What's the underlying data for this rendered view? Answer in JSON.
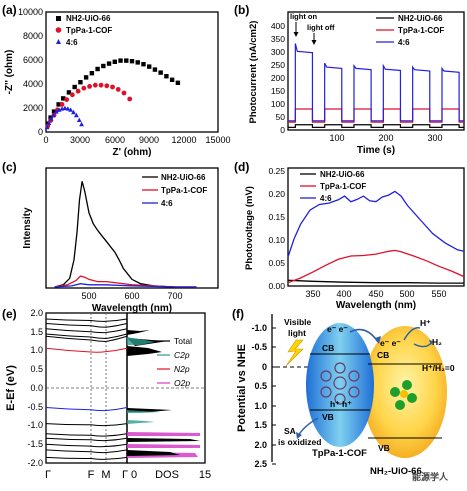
{
  "panels": {
    "a": {
      "label": "(a)",
      "xlabel": "Z' (ohm)",
      "ylabel": "-Z'' (ohm)",
      "xticks": [
        "0",
        "3000",
        "6000",
        "9000",
        "12000",
        "15000"
      ],
      "yticks": [
        "0",
        "2000",
        "4000",
        "6000",
        "8000",
        "10000"
      ],
      "legend": [
        "NH2-UiO-66",
        "TpPa-1-COF",
        "4:6"
      ]
    },
    "b": {
      "label": "(b)",
      "xlabel": "Time (s)",
      "ylabel": "Photocurrent (nA/cm2)",
      "xticks": [
        "100",
        "200",
        "300"
      ],
      "yticks": [
        "0",
        "50",
        "100",
        "150",
        "200",
        "250",
        "300",
        "350",
        "400"
      ],
      "legend": [
        "NH2-UiO-66",
        "TpPa-1-COF",
        "4:6"
      ],
      "annotations": [
        "light on",
        "light off"
      ]
    },
    "c": {
      "label": "(c)",
      "xlabel": "Wavelength (nm)",
      "ylabel": "Intensity",
      "xticks": [
        "500",
        "600",
        "700"
      ],
      "legend": [
        "NH2-UiO-66",
        "TpPa-1-COF",
        "4:6"
      ]
    },
    "d": {
      "label": "(d)",
      "xlabel": "Wavelength (nm)",
      "ylabel": "Photovoltage (mV)",
      "xticks": [
        "350",
        "400",
        "450",
        "500",
        "550"
      ],
      "yticks": [
        "0.00",
        "0.05",
        "0.10",
        "0.15",
        "0.20",
        "0.25"
      ],
      "legend": [
        "NH2-UiO-66",
        "TpPa-1-COF",
        "4:6"
      ]
    },
    "e": {
      "label": "(e)",
      "ylabel": "E-Ef (eV)",
      "yticks": [
        "2.0",
        "1.5",
        "1.0",
        "0.5",
        "0.0",
        "-0.5",
        "-1.0",
        "-1.5",
        "-2.0"
      ],
      "kpoints": [
        "Γ",
        "F",
        "M",
        "Γ"
      ],
      "dos_xticks": [
        "0",
        "15"
      ],
      "dos_label": "DOS",
      "legend": [
        "Total",
        "C2p",
        "N2p",
        "O2p"
      ]
    },
    "f": {
      "label": "(f)",
      "ylabel": "Potential vs NHE",
      "yticks": [
        "-1.0",
        "-0.5",
        "0",
        "0.5",
        "1.0",
        "1.5",
        "2.0",
        "2.5"
      ],
      "labels": {
        "visible_light": [
          "Visible",
          "light"
        ],
        "cb1": "CB",
        "vb1": "VB",
        "cb2": "CB",
        "vb2": "VB",
        "e1": "e⁻ e⁻",
        "e2": "e⁻ e⁻",
        "holes": "h⁺ h⁺",
        "h_plus": "H⁺",
        "h2": "H₂",
        "h_couple": "H⁺/H₂=0",
        "sa": [
          "SA",
          "is oxidized"
        ],
        "cof": "TpPa-1-COF",
        "uio": "NH₂-UiO-66",
        "watermark": "能源学人"
      }
    }
  },
  "chart_data": [
    {
      "panel": "a",
      "type": "scatter",
      "xlabel": "Z' (ohm)",
      "ylabel": "-Z'' (ohm)",
      "xlim": [
        0,
        15000
      ],
      "ylim": [
        0,
        10000
      ],
      "series": [
        {
          "name": "NH2-UiO-66",
          "color": "#000000",
          "marker": "square",
          "x": [
            150,
            400,
            700,
            1100,
            1500,
            2000,
            2500,
            3000,
            3500,
            4000,
            4500,
            5000,
            5500,
            6000,
            6500,
            7000,
            7500,
            8000,
            8500,
            9000,
            9500,
            10000,
            10500,
            11000,
            11500
          ],
          "y": [
            700,
            1200,
            1700,
            2300,
            2800,
            3300,
            3750,
            4150,
            4550,
            4900,
            5250,
            5500,
            5700,
            5850,
            5950,
            5950,
            5900,
            5800,
            5650,
            5450,
            5200,
            4950,
            4650,
            4350,
            4100
          ]
        },
        {
          "name": "TpPa-1-COF",
          "color": "#e0102a",
          "marker": "circle",
          "x": [
            150,
            400,
            700,
            1000,
            1400,
            1800,
            2300,
            2800,
            3300,
            3800,
            4300,
            4800,
            5300,
            5800,
            6300,
            6800,
            7300
          ],
          "y": [
            500,
            950,
            1400,
            1850,
            2300,
            2700,
            3100,
            3400,
            3650,
            3800,
            3900,
            3900,
            3850,
            3750,
            3550,
            3250,
            2750
          ]
        },
        {
          "name": "4:6",
          "color": "#2020e0",
          "marker": "triangle",
          "x": [
            100,
            250,
            450,
            650,
            900,
            1150,
            1400,
            1650,
            1900,
            2150,
            2400,
            2650,
            2900,
            3100
          ],
          "y": [
            400,
            750,
            1100,
            1400,
            1700,
            1850,
            1950,
            2000,
            1950,
            1850,
            1650,
            1400,
            1000,
            650
          ]
        }
      ]
    },
    {
      "panel": "b",
      "type": "line",
      "xlabel": "Time (s)",
      "ylabel": "Photocurrent (nA/cm2)",
      "xlim": [
        0,
        360
      ],
      "ylim": [
        0,
        450
      ],
      "on_times": [
        [
          15,
          50
        ],
        [
          75,
          110
        ],
        [
          135,
          170
        ],
        [
          195,
          230
        ],
        [
          255,
          290
        ],
        [
          315,
          350
        ]
      ],
      "series": [
        {
          "name": "NH2-UiO-66",
          "color": "#000000",
          "dark": 10,
          "on": 20
        },
        {
          "name": "TpPa-1-COF",
          "color": "#e0102a",
          "dark": 30,
          "on": 80
        },
        {
          "name": "4:6",
          "color": "#2020e0",
          "dark": 35,
          "on_peaks": [
            330,
            255,
            245,
            245,
            240,
            235
          ],
          "on_plateau": [
            300,
            240,
            235,
            232,
            230,
            225
          ]
        }
      ]
    },
    {
      "panel": "c",
      "type": "line",
      "xlabel": "Wavelength (nm)",
      "ylabel": "Intensity",
      "xlim": [
        400,
        800
      ],
      "ylim": [
        0,
        1
      ],
      "series": [
        {
          "name": "NH2-UiO-66",
          "color": "#000000",
          "x": [
            420,
            440,
            455,
            465,
            472,
            478,
            484,
            490,
            500,
            510,
            520,
            530,
            540,
            550,
            560,
            570,
            580,
            600,
            620,
            650,
            700,
            750
          ],
          "y": [
            0.0,
            0.02,
            0.08,
            0.25,
            0.5,
            0.8,
            0.97,
            0.88,
            0.68,
            0.58,
            0.52,
            0.47,
            0.42,
            0.37,
            0.32,
            0.25,
            0.17,
            0.07,
            0.03,
            0.01,
            0.0,
            0.0
          ]
        },
        {
          "name": "TpPa-1-COF",
          "color": "#e0102a",
          "x": [
            420,
            450,
            470,
            480,
            490,
            500,
            520,
            540,
            560,
            600,
            650,
            700,
            750
          ],
          "y": [
            0.0,
            0.02,
            0.06,
            0.1,
            0.09,
            0.07,
            0.05,
            0.05,
            0.04,
            0.02,
            0.01,
            0.0,
            0.0
          ]
        },
        {
          "name": "4:6",
          "color": "#2020e0",
          "x": [
            420,
            460,
            480,
            500,
            540,
            600,
            700,
            750
          ],
          "y": [
            0.0,
            0.01,
            0.03,
            0.02,
            0.02,
            0.01,
            0.0,
            0.0
          ]
        }
      ]
    },
    {
      "panel": "d",
      "type": "line",
      "xlabel": "Wavelength (nm)",
      "ylabel": "Photovoltage (mV)",
      "xlim": [
        310,
        590
      ],
      "ylim": [
        0,
        0.25
      ],
      "series": [
        {
          "name": "NH2-UiO-66",
          "color": "#000000",
          "x": [
            310,
            350,
            400,
            450,
            500,
            550,
            590
          ],
          "y": [
            0.01,
            0.008,
            0.006,
            0.005,
            0.005,
            0.004,
            0.004
          ]
        },
        {
          "name": "TpPa-1-COF",
          "color": "#e0102a",
          "x": [
            310,
            330,
            350,
            370,
            390,
            410,
            430,
            450,
            470,
            480,
            490,
            510,
            530,
            550,
            570,
            590
          ],
          "y": [
            0.005,
            0.015,
            0.028,
            0.042,
            0.055,
            0.062,
            0.063,
            0.066,
            0.072,
            0.074,
            0.071,
            0.062,
            0.052,
            0.04,
            0.03,
            0.018
          ]
        },
        {
          "name": "4:6",
          "color": "#2020e0",
          "x": [
            310,
            320,
            330,
            345,
            360,
            375,
            390,
            400,
            410,
            420,
            430,
            440,
            450,
            460,
            470,
            480,
            490,
            500,
            520,
            540,
            560,
            580,
            590
          ],
          "y": [
            0.06,
            0.1,
            0.13,
            0.16,
            0.172,
            0.175,
            0.182,
            0.19,
            0.178,
            0.183,
            0.19,
            0.18,
            0.178,
            0.188,
            0.192,
            0.2,
            0.19,
            0.17,
            0.14,
            0.11,
            0.09,
            0.075,
            0.072
          ]
        }
      ]
    },
    {
      "panel": "e",
      "type": "line",
      "ylabel": "E-Ef (eV)",
      "ylim": [
        -2.0,
        2.0
      ],
      "bands": [
        {
          "color": "#000000",
          "y": [
            1.84,
            1.8,
            1.78,
            1.84
          ]
        },
        {
          "color": "#000000",
          "y": [
            1.72,
            1.66,
            1.62,
            1.72
          ]
        },
        {
          "color": "#000000",
          "y": [
            1.58,
            1.5,
            1.48,
            1.58
          ]
        },
        {
          "color": "#000000",
          "y": [
            1.44,
            1.36,
            1.32,
            1.44
          ]
        },
        {
          "color": "#000000",
          "y": [
            1.38,
            1.28,
            1.24,
            1.38
          ]
        },
        {
          "color": "#e0102a",
          "y": [
            1.06,
            0.96,
            0.97,
            1.06
          ]
        },
        {
          "color": "#2020e0",
          "y": [
            -0.52,
            -0.58,
            -0.6,
            -0.52
          ]
        },
        {
          "color": "#000000",
          "y": [
            -0.95,
            -0.98,
            -1.0,
            -0.95
          ]
        },
        {
          "color": "#000000",
          "y": [
            -1.22,
            -1.26,
            -1.28,
            -1.22
          ]
        },
        {
          "color": "#000000",
          "y": [
            -1.34,
            -1.38,
            -1.4,
            -1.34
          ]
        },
        {
          "color": "#000000",
          "y": [
            -1.5,
            -1.55,
            -1.56,
            -1.5
          ]
        },
        {
          "color": "#000000",
          "y": [
            -1.65,
            -1.7,
            -1.72,
            -1.65
          ]
        },
        {
          "color": "#000000",
          "y": [
            -1.85,
            -1.88,
            -1.9,
            -1.85
          ]
        }
      ]
    }
  ]
}
